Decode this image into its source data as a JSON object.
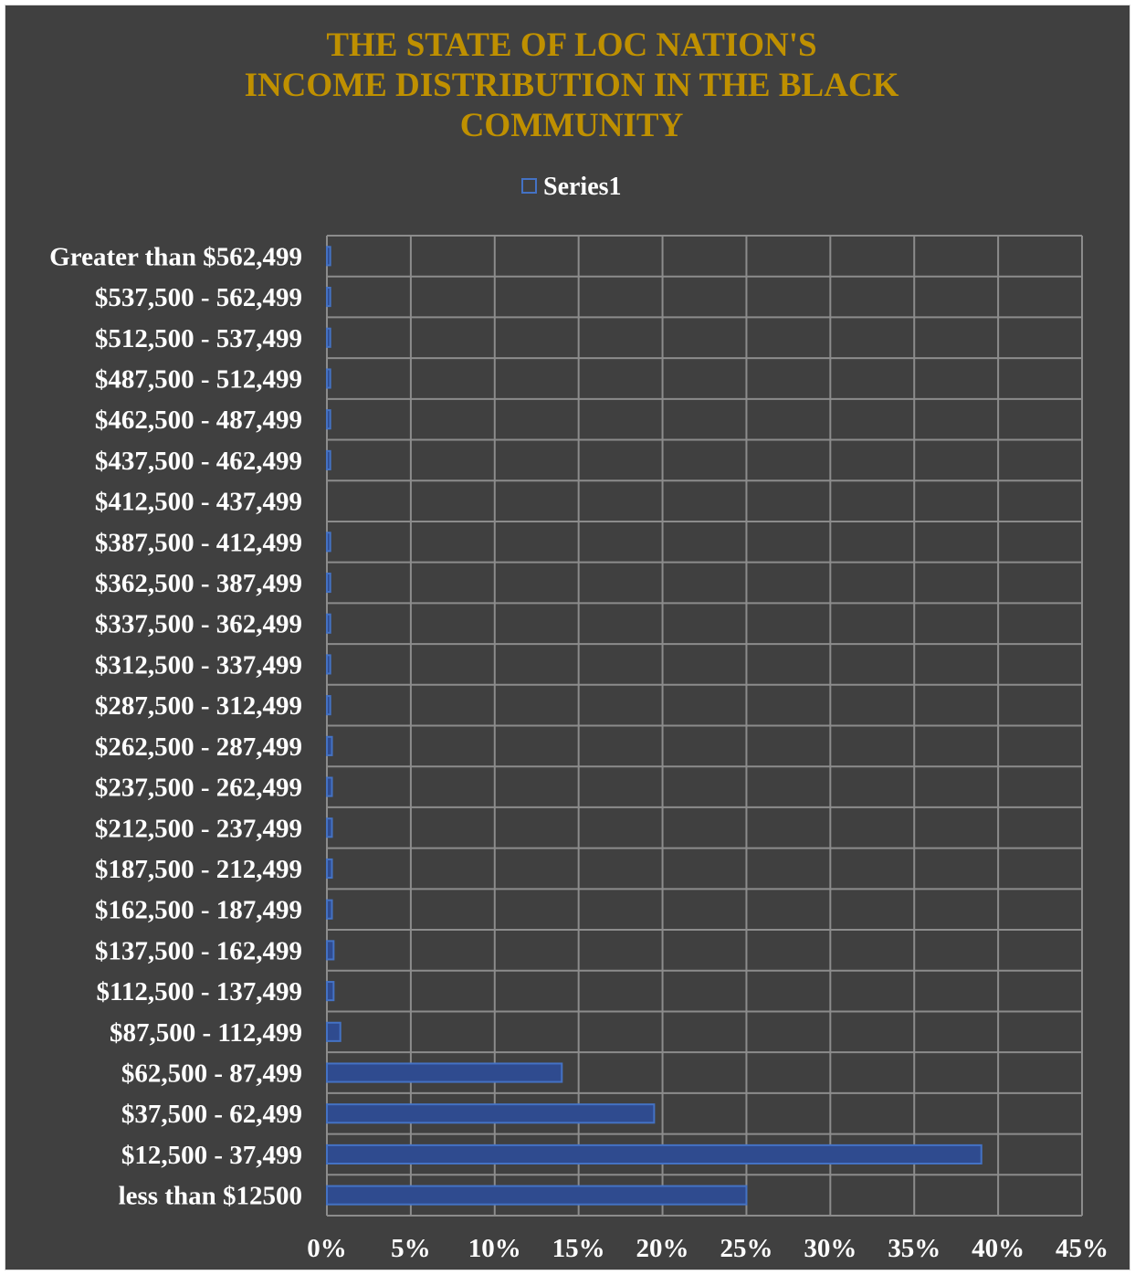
{
  "chart_data": {
    "type": "bar",
    "orientation": "horizontal",
    "title_lines": [
      "THE STATE OF LOC NATION'S",
      "INCOME DISTRIBUTION IN THE BLACK",
      "COMMUNITY"
    ],
    "legend": {
      "position": "top",
      "entries": [
        "Series1"
      ]
    },
    "xlim": [
      0,
      45
    ],
    "x_ticks": [
      "0%",
      "5%",
      "10%",
      "15%",
      "20%",
      "25%",
      "30%",
      "35%",
      "40%",
      "45%"
    ],
    "grid": true,
    "categories": [
      "less than $12500",
      "$12,500 - 37,499",
      "$37,500 - 62,499",
      "$62,500 - 87,499",
      "$87,500 - 112,499",
      "$112,500 - 137,499",
      "$137,500 - 162,499",
      "$162,500 - 187,499",
      "$187,500 - 212,499",
      "$212,500 - 237,499",
      "$237,500 - 262,499",
      "$262,500 - 287,499",
      "$287,500 - 312,499",
      "$312,500 - 337,499",
      "$337,500 - 362,499",
      "$362,500 - 387,499",
      "$387,500 - 412,499",
      "$412,500 - 437,499",
      "$437,500 - 462,499",
      "$462,500 - 487,499",
      "$487,500 - 512,499",
      "$512,500 - 537,499",
      "$537,500 - 562,499",
      "Greater than $562,499"
    ],
    "series": [
      {
        "name": "Series1",
        "values": [
          25.0,
          39.0,
          19.5,
          14.0,
          0.8,
          0.4,
          0.4,
          0.3,
          0.3,
          0.3,
          0.3,
          0.3,
          0.2,
          0.2,
          0.2,
          0.2,
          0.2,
          0.0,
          0.2,
          0.2,
          0.2,
          0.2,
          0.2,
          0.2
        ]
      }
    ]
  },
  "colors": {
    "background": "#404040",
    "title": "#bf9000",
    "text": "#ffffff",
    "grid": "#8c8c8c",
    "bar_fill": "#2f4b8f",
    "bar_stroke": "#4472c4"
  }
}
